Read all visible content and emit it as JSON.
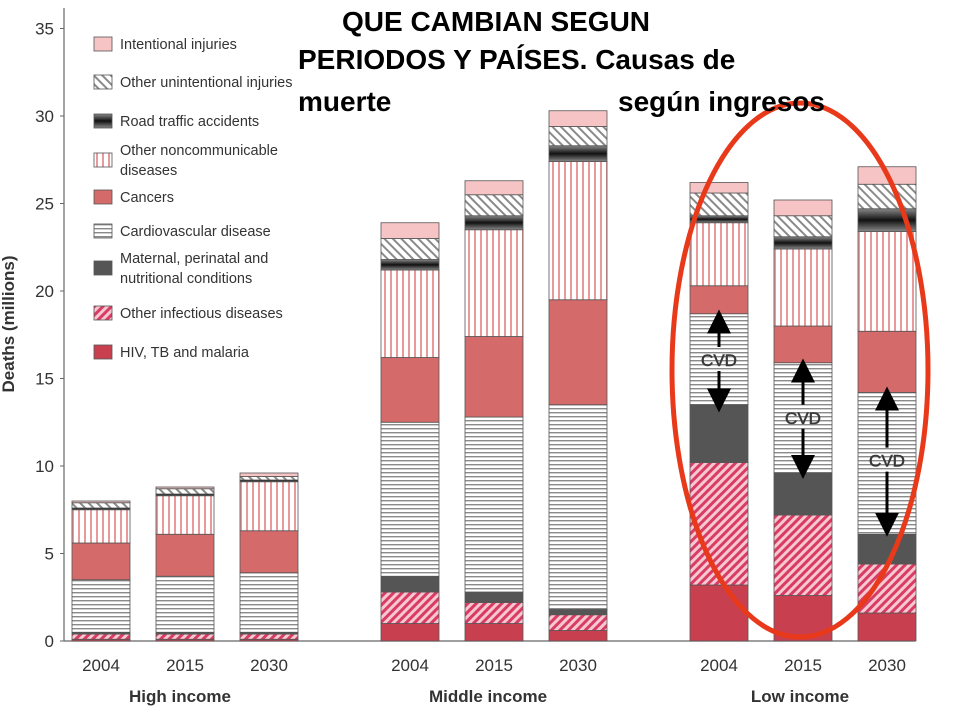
{
  "title": {
    "line1": "QUE CAMBIAN SEGUN",
    "line2": "PERIODOS Y PAÍSES. Causas de",
    "line3a": "muerte",
    "line3b": "según ingresos"
  },
  "colors": {
    "hiv": "#c8404f",
    "infectious": "#e0607a",
    "maternal": "#555555",
    "cvd": "#ffffff",
    "cancers": "#d46a6a",
    "noncommunicable": "#f5b8b8",
    "road": "#444444",
    "unintentional": "#9a9a9a",
    "intentional": "#f6c4c4",
    "ellipse": "#e83a1a"
  },
  "chart_data": {
    "type": "bar",
    "stacked": true,
    "ylabel": "Deaths (millions)",
    "ylim": [
      0,
      35
    ],
    "yticks": [
      "0",
      "5",
      "10",
      "15",
      "20",
      "25",
      "30",
      "35"
    ],
    "groups": [
      "High income",
      "Middle income",
      "Low income"
    ],
    "categories": [
      "2004",
      "2015",
      "2030"
    ],
    "legend": [
      {
        "key": "intentional",
        "label": "Intentional injuries"
      },
      {
        "key": "unintentional",
        "label": "Other unintentional injuries"
      },
      {
        "key": "road",
        "label": "Road traffic accidents"
      },
      {
        "key": "noncommunicable",
        "label": "Other noncommunicable diseases"
      },
      {
        "key": "cancers",
        "label": "Cancers"
      },
      {
        "key": "cvd",
        "label": "Cardiovascular disease"
      },
      {
        "key": "maternal",
        "label": "Maternal, perinatal and nutritional conditions"
      },
      {
        "key": "infectious",
        "label": "Other infectious diseases"
      },
      {
        "key": "hiv",
        "label": "HIV, TB and malaria"
      }
    ],
    "bars": [
      {
        "group": "High income",
        "year": "2004",
        "values": {
          "hiv": 0.1,
          "infectious": 0.3,
          "maternal": 0.1,
          "cvd": 3.0,
          "cancers": 2.1,
          "noncommunicable": 1.9,
          "road": 0.1,
          "unintentional": 0.3,
          "intentional": 0.1
        }
      },
      {
        "group": "High income",
        "year": "2015",
        "values": {
          "hiv": 0.1,
          "infectious": 0.3,
          "maternal": 0.1,
          "cvd": 3.2,
          "cancers": 2.4,
          "noncommunicable": 2.2,
          "road": 0.1,
          "unintentional": 0.3,
          "intentional": 0.1
        }
      },
      {
        "group": "High income",
        "year": "2030",
        "values": {
          "hiv": 0.1,
          "infectious": 0.3,
          "maternal": 0.1,
          "cvd": 3.4,
          "cancers": 2.4,
          "noncommunicable": 2.8,
          "road": 0.1,
          "unintentional": 0.2,
          "intentional": 0.2
        }
      },
      {
        "group": "Middle income",
        "year": "2004",
        "values": {
          "hiv": 1.0,
          "infectious": 1.8,
          "maternal": 0.9,
          "cvd": 8.8,
          "cancers": 3.7,
          "noncommunicable": 5.0,
          "road": 0.6,
          "unintentional": 1.2,
          "intentional": 0.9
        }
      },
      {
        "group": "Middle income",
        "year": "2015",
        "values": {
          "hiv": 1.0,
          "infectious": 1.2,
          "maternal": 0.6,
          "cvd": 10.0,
          "cancers": 4.6,
          "noncommunicable": 6.1,
          "road": 0.8,
          "unintentional": 1.2,
          "intentional": 0.8
        }
      },
      {
        "group": "Middle income",
        "year": "2030",
        "values": {
          "hiv": 0.6,
          "infectious": 0.9,
          "maternal": 0.3,
          "cvd": 11.7,
          "cancers": 6.0,
          "noncommunicable": 7.9,
          "road": 0.9,
          "unintentional": 1.1,
          "intentional": 0.9
        }
      },
      {
        "group": "Low income",
        "year": "2004",
        "values": {
          "hiv": 3.2,
          "infectious": 7.0,
          "maternal": 3.3,
          "cvd": 5.2,
          "cancers": 1.6,
          "noncommunicable": 3.6,
          "road": 0.4,
          "unintentional": 1.3,
          "intentional": 0.6
        }
      },
      {
        "group": "Low income",
        "year": "2015",
        "values": {
          "hiv": 2.6,
          "infectious": 4.6,
          "maternal": 2.4,
          "cvd": 6.3,
          "cancers": 2.1,
          "noncommunicable": 4.4,
          "road": 0.7,
          "unintentional": 1.2,
          "intentional": 0.9
        }
      },
      {
        "group": "Low income",
        "year": "2030",
        "values": {
          "hiv": 1.6,
          "infectious": 2.8,
          "maternal": 1.7,
          "cvd": 8.1,
          "cancers": 3.5,
          "noncommunicable": 5.7,
          "road": 1.3,
          "unintentional": 1.4,
          "intentional": 1.0
        }
      }
    ],
    "annotations": [
      {
        "label": "CVD",
        "bar_index": 6,
        "from": 13.4,
        "to": 18.6
      },
      {
        "label": "CVD",
        "bar_index": 7,
        "from": 9.6,
        "to": 15.8
      },
      {
        "label": "CVD",
        "bar_index": 8,
        "from": 6.3,
        "to": 14.2
      }
    ]
  }
}
